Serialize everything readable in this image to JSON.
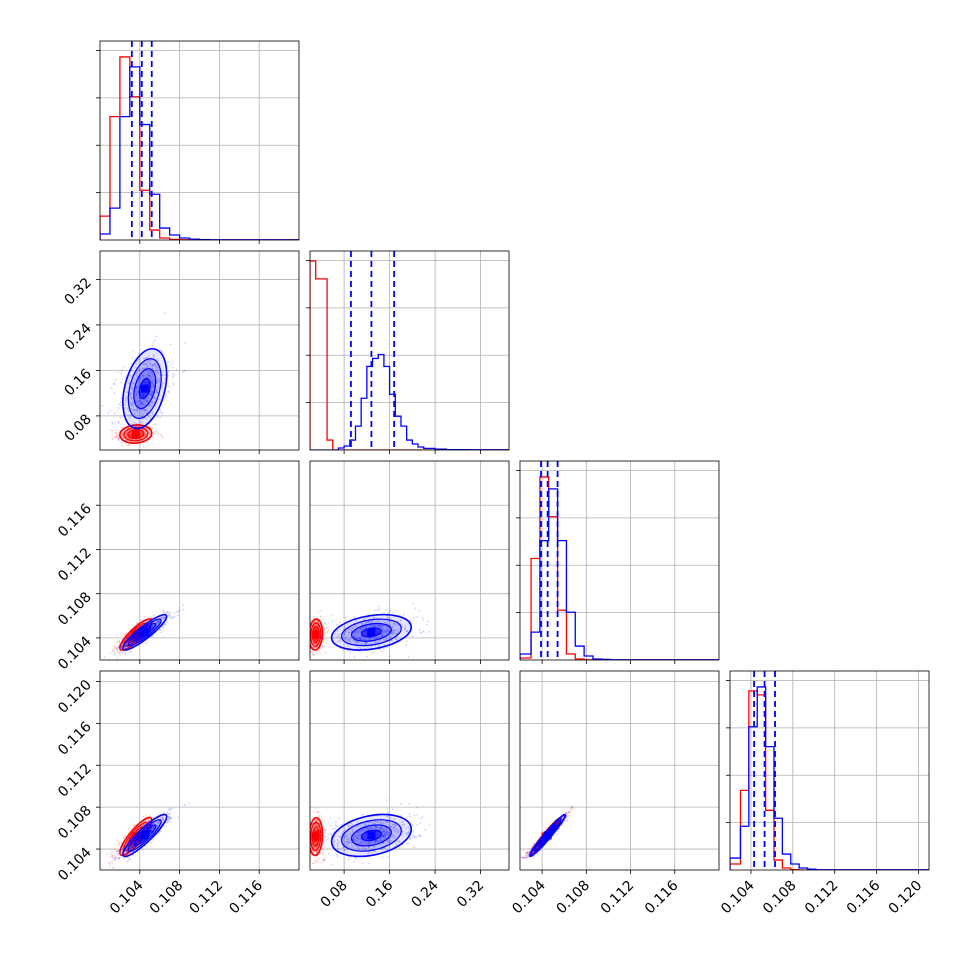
{
  "chart_data": {
    "type": "corner",
    "series": [
      {
        "name": "",
        "color": "#0000ff"
      },
      {
        "name": "",
        "color": "#ff0000"
      }
    ],
    "params": [
      {
        "range": [
          0.1,
          0.12
        ],
        "ticks": [
          0.104,
          0.108,
          0.112,
          0.116
        ],
        "tick_labels": [
          "0.104",
          "0.108",
          "0.112",
          "0.116"
        ]
      },
      {
        "range": [
          0.02,
          0.37
        ],
        "ticks": [
          0.08,
          0.16,
          0.24,
          0.32
        ],
        "tick_labels": [
          "0.08",
          "0.16",
          "0.24",
          "0.32"
        ]
      },
      {
        "range": [
          0.102,
          0.12
        ],
        "ticks": [
          0.104,
          0.108,
          0.112,
          0.116
        ],
        "tick_labels": [
          "0.104",
          "0.108",
          "0.112",
          "0.116"
        ]
      },
      {
        "range": [
          0.102,
          0.121
        ],
        "ticks": [
          0.104,
          0.108,
          0.112,
          0.116,
          0.12
        ],
        "tick_labels": [
          "0.104",
          "0.108",
          "0.112",
          "0.116",
          "0.120"
        ]
      }
    ],
    "diag_hists": [
      {
        "bin_edges": [
          0.1,
          0.101,
          0.102,
          0.103,
          0.104,
          0.105,
          0.106,
          0.107,
          0.108,
          0.109,
          0.11,
          0.111,
          0.112,
          0.114,
          0.116,
          0.12
        ],
        "blue": [
          0.03,
          0.16,
          0.62,
          0.87,
          0.58,
          0.23,
          0.06,
          0.025,
          0.01,
          0.004,
          0.002,
          0.001,
          0.001,
          0.001,
          0.001
        ],
        "red": [
          0.12,
          0.62,
          0.92,
          0.72,
          0.25,
          0.05,
          0.01,
          0.003,
          0.001,
          0.0,
          0.0,
          0.0,
          0.0,
          0.0,
          0.0
        ],
        "quantile_lines": [
          0.1032,
          0.1042,
          0.1052
        ]
      },
      {
        "bin_edges": [
          0.02,
          0.03,
          0.04,
          0.05,
          0.06,
          0.07,
          0.08,
          0.09,
          0.1,
          0.11,
          0.12,
          0.13,
          0.14,
          0.15,
          0.16,
          0.17,
          0.18,
          0.19,
          0.2,
          0.21,
          0.22,
          0.24,
          0.26,
          0.3,
          0.37
        ],
        "blue": [
          0.0,
          0.0,
          0.0,
          0.0,
          0.0,
          0.01,
          0.02,
          0.05,
          0.12,
          0.26,
          0.42,
          0.46,
          0.48,
          0.42,
          0.28,
          0.17,
          0.12,
          0.05,
          0.03,
          0.015,
          0.008,
          0.004,
          0.002,
          0.001
        ],
        "red": [
          0.95,
          0.86,
          0.86,
          0.05,
          0.0,
          0.0,
          0.0,
          0.0,
          0.0,
          0.0,
          0.0,
          0.0,
          0.0,
          0.0,
          0.0,
          0.0,
          0.0,
          0.0,
          0.0,
          0.0,
          0.0,
          0.0,
          0.0,
          0.0
        ],
        "quantile_lines": [
          0.092,
          0.128,
          0.168
        ]
      },
      {
        "bin_edges": [
          0.102,
          0.103,
          0.1038,
          0.1046,
          0.1054,
          0.1062,
          0.107,
          0.1078,
          0.1086,
          0.1094,
          0.1102,
          0.111,
          0.12
        ],
        "blue": [
          0.03,
          0.14,
          0.6,
          0.86,
          0.6,
          0.24,
          0.07,
          0.02,
          0.005,
          0.003,
          0.001,
          0.001
        ],
        "red": [
          0.01,
          0.51,
          0.92,
          0.72,
          0.25,
          0.03,
          0.005,
          0.001,
          0.0,
          0.0,
          0.0,
          0.0
        ],
        "quantile_lines": [
          0.1039,
          0.1045,
          0.1054
        ]
      },
      {
        "bin_edges": [
          0.102,
          0.103,
          0.1038,
          0.1046,
          0.1054,
          0.1062,
          0.107,
          0.1078,
          0.1086,
          0.1094,
          0.1102,
          0.111,
          0.121
        ],
        "blue": [
          0.06,
          0.22,
          0.72,
          0.92,
          0.62,
          0.26,
          0.08,
          0.03,
          0.01,
          0.004,
          0.001,
          0.001
        ],
        "red": [
          0.03,
          0.4,
          0.9,
          0.88,
          0.3,
          0.05,
          0.01,
          0.002,
          0.0,
          0.0,
          0.0,
          0.0
        ],
        "quantile_lines": [
          0.1043,
          0.1053,
          0.1063
        ]
      }
    ],
    "clouds": {
      "blue": [
        {
          "center": [
            0.1045,
            0.128
          ],
          "sigma": [
            0.0011,
            0.035
          ],
          "rho": 0.35
        },
        {
          "center": [
            0.1045,
            0.1045
          ],
          "sigma": [
            0.0011,
            0.0008
          ],
          "rho": 0.9
        },
        {
          "center": [
            0.1045,
            0.1053
          ],
          "sigma": [
            0.0011,
            0.001
          ],
          "rho": 0.9
        },
        {
          "center": [
            0.128,
            0.1045
          ],
          "sigma": [
            0.035,
            0.0008
          ],
          "rho": 0.3
        },
        {
          "center": [
            0.128,
            0.1053
          ],
          "sigma": [
            0.035,
            0.001
          ],
          "rho": 0.3
        },
        {
          "center": [
            0.1045,
            0.1053
          ],
          "sigma": [
            0.0008,
            0.001
          ],
          "rho": 0.97
        }
      ],
      "red": [
        {
          "center": [
            0.1036,
            0.048
          ],
          "sigma": [
            0.0008,
            0.008
          ],
          "rho": 0.1
        },
        {
          "center": [
            0.1036,
            0.1043
          ],
          "sigma": [
            0.0008,
            0.0007
          ],
          "rho": 0.85
        },
        {
          "center": [
            0.1036,
            0.1052
          ],
          "sigma": [
            0.0008,
            0.0009
          ],
          "rho": 0.85
        },
        {
          "center": [
            0.03,
            0.1043
          ],
          "sigma": [
            0.006,
            0.0007
          ],
          "rho": 0.1
        },
        {
          "center": [
            0.03,
            0.1052
          ],
          "sigma": [
            0.006,
            0.0009
          ],
          "rho": 0.1
        },
        {
          "center": [
            0.1043,
            0.1052
          ],
          "sigma": [
            0.0007,
            0.0009
          ],
          "rho": 0.97
        }
      ]
    },
    "grid": true
  }
}
